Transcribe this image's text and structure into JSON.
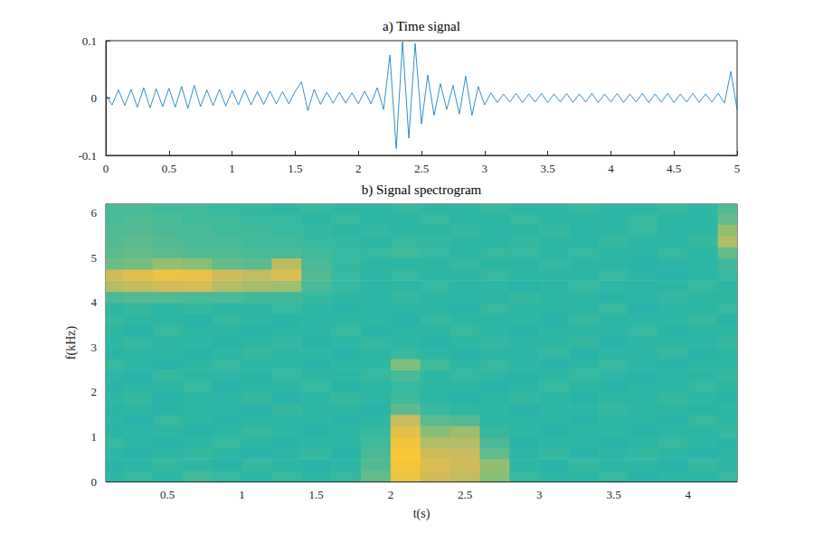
{
  "chart_data": [
    {
      "type": "line",
      "title": "a) Time signal",
      "color": "#0072bd",
      "x": [
        0,
        0.05,
        0.1,
        0.15,
        0.2,
        0.25,
        0.3,
        0.35,
        0.4,
        0.45,
        0.5,
        0.55,
        0.6,
        0.65,
        0.7,
        0.75,
        0.8,
        0.85,
        0.9,
        0.95,
        1,
        1.05,
        1.1,
        1.15,
        1.2,
        1.25,
        1.3,
        1.35,
        1.4,
        1.45,
        1.5,
        1.55,
        1.6,
        1.65,
        1.7,
        1.75,
        1.8,
        1.85,
        1.9,
        1.95,
        2,
        2.05,
        2.1,
        2.15,
        2.2,
        2.25,
        2.3,
        2.35,
        2.4,
        2.45,
        2.5,
        2.55,
        2.6,
        2.65,
        2.7,
        2.75,
        2.8,
        2.85,
        2.9,
        2.95,
        3,
        3.05,
        3.1,
        3.15,
        3.2,
        3.25,
        3.3,
        3.35,
        3.4,
        3.45,
        3.5,
        3.55,
        3.6,
        3.65,
        3.7,
        3.75,
        3.8,
        3.85,
        3.9,
        3.95,
        4,
        4.05,
        4.1,
        4.15,
        4.2,
        4.25,
        4.3,
        4.35,
        4.4,
        4.45,
        4.5,
        4.55,
        4.6,
        4.65,
        4.7,
        4.75,
        4.8,
        4.85,
        4.9,
        4.95,
        5
      ],
      "values": [
        0.005,
        -0.012,
        0.014,
        -0.013,
        0.015,
        -0.016,
        0.018,
        -0.017,
        0.016,
        -0.015,
        0.017,
        -0.016,
        0.02,
        -0.018,
        0.022,
        -0.015,
        0.014,
        -0.013,
        0.015,
        -0.014,
        0.013,
        -0.012,
        0.014,
        -0.012,
        0.011,
        -0.011,
        0.012,
        -0.01,
        0.011,
        -0.01,
        0.012,
        0.028,
        -0.022,
        0.015,
        -0.011,
        0.01,
        -0.009,
        0.01,
        -0.009,
        0.009,
        -0.01,
        0.012,
        -0.01,
        0.018,
        -0.02,
        0.075,
        -0.088,
        0.098,
        -0.07,
        0.095,
        -0.045,
        0.04,
        -0.03,
        0.025,
        -0.02,
        0.022,
        -0.028,
        0.038,
        -0.03,
        0.02,
        -0.012,
        0.009,
        -0.008,
        0.007,
        -0.007,
        0.008,
        -0.008,
        0.007,
        -0.007,
        0.008,
        -0.008,
        0.007,
        -0.007,
        0.008,
        -0.008,
        0.007,
        -0.007,
        0.008,
        -0.008,
        0.007,
        -0.007,
        0.008,
        -0.008,
        0.007,
        -0.007,
        0.008,
        -0.008,
        0.007,
        -0.007,
        0.008,
        -0.008,
        0.007,
        -0.007,
        0.008,
        -0.008,
        0.007,
        -0.007,
        0.008,
        -0.009,
        0.046,
        -0.02
      ],
      "xlim": [
        0,
        5
      ],
      "xticks": [
        0,
        0.5,
        1,
        1.5,
        2,
        2.5,
        3,
        3.5,
        4,
        4.5,
        5
      ],
      "ylim": [
        -0.1,
        0.1
      ],
      "yticks": [
        -0.1,
        0,
        0.1
      ],
      "grid": false
    },
    {
      "type": "heatmap",
      "title": "b) Signal spectrogram",
      "x_label": "t(s)",
      "y_label": "f(kHz)",
      "x": [
        0.1,
        0.3,
        0.5,
        0.7,
        0.9,
        1.1,
        1.3,
        1.5,
        1.7,
        1.9,
        2.1,
        2.3,
        2.5,
        2.7,
        2.9,
        3.1,
        3.3,
        3.5,
        3.7,
        3.9,
        4.1,
        4.3
      ],
      "y": [
        0.125,
        0.375,
        0.625,
        0.875,
        1.125,
        1.375,
        1.625,
        1.875,
        2.125,
        2.375,
        2.625,
        2.875,
        3.125,
        3.375,
        3.625,
        3.875,
        4.125,
        4.375,
        4.625,
        4.875,
        5.125,
        5.375,
        5.625,
        5.875,
        6.125
      ],
      "z": [
        [
          4.0,
          4.1,
          4.0,
          4.2,
          4.1,
          4.0,
          4.1,
          4.0,
          4.1,
          4.6,
          6.6,
          6.0,
          5.8,
          5.0,
          4.1,
          4.0,
          4.0,
          4.1,
          3.9,
          4.0,
          4.0,
          4.1
        ],
        [
          3.9,
          4.0,
          4.1,
          4.0,
          3.9,
          4.1,
          4.0,
          3.9,
          4.0,
          4.4,
          6.8,
          6.2,
          6.0,
          5.2,
          4.0,
          3.9,
          4.1,
          4.0,
          4.0,
          3.9,
          4.1,
          4.0
        ],
        [
          4.0,
          3.9,
          4.0,
          4.1,
          4.0,
          3.9,
          4.0,
          4.1,
          3.9,
          4.3,
          6.9,
          6.0,
          5.9,
          4.6,
          4.0,
          4.1,
          3.9,
          4.0,
          4.1,
          4.0,
          3.9,
          4.0
        ],
        [
          4.1,
          4.0,
          3.9,
          4.0,
          4.1,
          4.0,
          3.9,
          4.0,
          4.0,
          4.2,
          6.7,
          5.6,
          5.6,
          4.3,
          3.9,
          4.0,
          4.0,
          3.9,
          4.0,
          4.1,
          4.0,
          3.9
        ],
        [
          3.9,
          4.0,
          4.0,
          3.9,
          4.0,
          4.1,
          4.0,
          3.9,
          4.0,
          4.1,
          6.4,
          5.0,
          5.3,
          4.1,
          4.0,
          3.9,
          4.0,
          4.0,
          3.9,
          4.0,
          4.0,
          4.1
        ],
        [
          4.0,
          3.9,
          4.1,
          4.0,
          3.9,
          4.0,
          4.0,
          4.0,
          3.9,
          4.0,
          5.9,
          4.5,
          4.4,
          4.0,
          4.0,
          4.0,
          3.9,
          4.0,
          4.0,
          3.9,
          4.1,
          4.0
        ],
        [
          3.9,
          4.0,
          3.9,
          4.0,
          4.0,
          3.9,
          4.1,
          4.0,
          4.0,
          3.9,
          4.5,
          4.1,
          4.0,
          4.0,
          3.9,
          4.0,
          4.0,
          4.1,
          4.0,
          4.0,
          3.9,
          4.0
        ],
        [
          4.0,
          4.1,
          3.9,
          4.0,
          4.0,
          4.1,
          3.9,
          4.0,
          4.1,
          4.0,
          4.2,
          4.0,
          3.9,
          4.0,
          4.1,
          4.0,
          3.9,
          4.0,
          4.0,
          4.1,
          4.0,
          3.9
        ],
        [
          3.9,
          4.0,
          4.0,
          4.1,
          3.9,
          4.0,
          4.0,
          4.1,
          3.9,
          4.0,
          4.1,
          4.0,
          4.0,
          3.9,
          4.0,
          4.1,
          4.0,
          3.9,
          4.0,
          4.0,
          4.1,
          4.0
        ],
        [
          4.0,
          3.9,
          4.1,
          4.0,
          4.0,
          3.9,
          4.1,
          4.0,
          4.0,
          4.1,
          4.3,
          4.0,
          4.1,
          4.0,
          3.9,
          4.0,
          4.1,
          4.0,
          3.9,
          4.0,
          4.0,
          4.1
        ],
        [
          4.1,
          4.0,
          3.9,
          4.0,
          4.1,
          4.0,
          4.0,
          3.9,
          4.0,
          4.0,
          4.9,
          4.2,
          4.0,
          4.1,
          4.0,
          3.9,
          4.0,
          4.1,
          4.0,
          3.9,
          4.0,
          4.0
        ],
        [
          3.9,
          4.0,
          4.0,
          3.9,
          4.0,
          4.1,
          4.0,
          4.0,
          3.9,
          4.0,
          4.1,
          4.0,
          3.9,
          4.0,
          4.0,
          4.1,
          3.9,
          4.0,
          4.0,
          4.1,
          3.9,
          4.0
        ],
        [
          4.0,
          4.1,
          4.0,
          4.0,
          3.9,
          4.0,
          4.1,
          3.9,
          4.0,
          4.1,
          4.0,
          3.9,
          4.0,
          4.1,
          4.0,
          4.0,
          4.1,
          3.9,
          4.0,
          4.0,
          4.0,
          4.1
        ],
        [
          4.0,
          3.9,
          4.1,
          4.0,
          4.0,
          3.9,
          4.0,
          4.0,
          4.1,
          3.9,
          4.0,
          4.0,
          4.1,
          4.0,
          3.9,
          4.0,
          4.0,
          4.0,
          4.1,
          3.9,
          4.0,
          4.0
        ],
        [
          4.1,
          4.0,
          4.0,
          3.9,
          4.1,
          4.0,
          3.9,
          4.0,
          4.0,
          4.0,
          3.9,
          4.1,
          4.0,
          4.0,
          4.0,
          3.9,
          4.1,
          4.0,
          4.0,
          4.0,
          4.1,
          3.9
        ],
        [
          4.0,
          4.1,
          4.0,
          4.1,
          4.0,
          4.0,
          4.1,
          4.0,
          3.9,
          4.0,
          4.0,
          4.0,
          3.9,
          4.1,
          4.0,
          4.0,
          4.0,
          4.1,
          3.9,
          4.0,
          4.0,
          4.1
        ],
        [
          4.3,
          4.4,
          4.4,
          4.3,
          4.3,
          4.2,
          4.2,
          4.1,
          4.0,
          4.0,
          4.1,
          4.0,
          4.0,
          4.0,
          4.1,
          4.0,
          4.0,
          3.9,
          4.0,
          4.1,
          4.0,
          4.0
        ],
        [
          5.6,
          5.8,
          6.0,
          6.1,
          5.6,
          5.4,
          5.3,
          4.3,
          4.1,
          4.0,
          4.0,
          4.1,
          4.0,
          4.0,
          3.9,
          4.0,
          4.1,
          4.0,
          4.0,
          4.0,
          4.1,
          4.0
        ],
        [
          6.0,
          6.3,
          6.6,
          6.5,
          6.0,
          5.8,
          6.2,
          4.4,
          4.1,
          4.0,
          4.1,
          4.0,
          4.0,
          4.1,
          4.0,
          4.0,
          4.0,
          4.1,
          4.0,
          3.9,
          4.0,
          4.1
        ],
        [
          4.7,
          4.8,
          5.2,
          5.0,
          4.6,
          4.5,
          5.7,
          4.3,
          4.1,
          4.0,
          4.0,
          4.0,
          4.1,
          4.0,
          4.0,
          4.1,
          4.0,
          4.0,
          3.9,
          4.0,
          4.0,
          4.2
        ],
        [
          4.5,
          4.6,
          4.5,
          4.4,
          4.4,
          4.3,
          4.3,
          4.2,
          4.1,
          4.1,
          4.2,
          4.1,
          4.0,
          4.1,
          4.1,
          4.0,
          4.1,
          4.0,
          4.0,
          4.1,
          4.0,
          4.6
        ],
        [
          4.4,
          4.5,
          4.4,
          4.3,
          4.3,
          4.2,
          4.2,
          4.1,
          4.1,
          4.0,
          4.1,
          4.1,
          4.0,
          4.0,
          4.1,
          4.0,
          4.0,
          4.1,
          4.0,
          4.0,
          4.1,
          5.6
        ],
        [
          4.4,
          4.4,
          4.3,
          4.3,
          4.2,
          4.2,
          4.1,
          4.1,
          4.0,
          4.1,
          4.0,
          4.0,
          4.1,
          4.0,
          4.0,
          4.1,
          4.0,
          4.0,
          4.1,
          4.0,
          4.0,
          5.2
        ],
        [
          4.3,
          4.4,
          4.3,
          4.2,
          4.2,
          4.1,
          4.1,
          4.0,
          4.1,
          4.0,
          4.0,
          4.1,
          4.0,
          4.0,
          4.1,
          4.0,
          4.0,
          4.0,
          4.1,
          4.0,
          4.0,
          4.6
        ],
        [
          4.3,
          4.3,
          4.2,
          4.2,
          4.1,
          4.1,
          4.0,
          4.1,
          4.0,
          4.0,
          4.1,
          4.0,
          4.0,
          4.1,
          4.0,
          4.0,
          4.1,
          4.0,
          4.0,
          4.1,
          4.0,
          4.4
        ]
      ],
      "clim": [
        0,
        10
      ],
      "xlim": [
        0.085,
        4.33
      ],
      "xticks": [
        0.5,
        1,
        1.5,
        2,
        2.5,
        3,
        3.5,
        4
      ],
      "ylim": [
        0,
        6.2
      ],
      "yticks": [
        0,
        1,
        2,
        3,
        4,
        5,
        6
      ],
      "grid": false
    }
  ]
}
